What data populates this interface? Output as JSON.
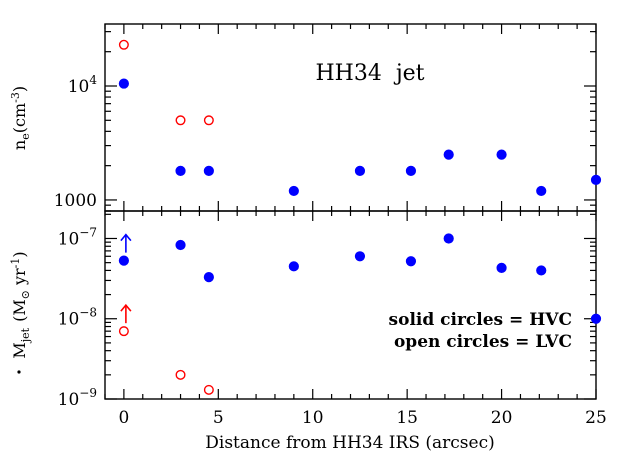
{
  "chart_data": [
    {
      "type": "scatter",
      "panel": "top",
      "title": "HH34  jet",
      "ylabel": "n_e(cm^-3)",
      "ylabel_base": "n",
      "ylabel_sub": "e",
      "ylabel_unit": "(cm",
      "ylabel_exp": "-3",
      "ylabel_close": ")",
      "yscale": "log",
      "ylim": [
        800,
        35000
      ],
      "xlim": [
        -1,
        25
      ],
      "ytick_labels": [
        {
          "value": 1000,
          "base": "1000",
          "exp": ""
        },
        {
          "value": 10000,
          "base": "10",
          "exp": "4"
        }
      ],
      "series": [
        {
          "name": "HVC",
          "style": "solid",
          "color": "#0000ff",
          "x": [
            0,
            3,
            4.5,
            9,
            12.5,
            15.2,
            17.2,
            20,
            22.1,
            25
          ],
          "y": [
            10500,
            1800,
            1800,
            1200,
            1800,
            1800,
            2500,
            2500,
            1200,
            1500
          ]
        },
        {
          "name": "LVC",
          "style": "open",
          "color": "#ff0000",
          "x": [
            0,
            3,
            4.5
          ],
          "y": [
            23000,
            5000,
            5000
          ]
        }
      ]
    },
    {
      "type": "scatter",
      "panel": "bottom",
      "ylabel": "Mdot_jet (M_sun yr^-1)",
      "ylabel_base": "M",
      "ylabel_sub": "jet",
      "ylabel_unit": "(M",
      "ylabel_sun": "⊙",
      "ylabel_yr": " yr",
      "ylabel_exp": "-1",
      "ylabel_close": ")",
      "xlabel": "Distance from HH34 IRS (arcsec)",
      "yscale": "log",
      "ylim": [
        1e-09,
        2.2e-07
      ],
      "xlim": [
        -1,
        25
      ],
      "xticks": [
        0,
        5,
        10,
        15,
        20,
        25
      ],
      "xtick_labels": [
        "0",
        "5",
        "10",
        "15",
        "20",
        "25"
      ],
      "ytick_labels": [
        {
          "value": 1e-07,
          "base": "10",
          "exp": "−7"
        },
        {
          "value": 1e-08,
          "base": "10",
          "exp": "−8"
        },
        {
          "value": 1e-09,
          "base": "10",
          "exp": "−9"
        }
      ],
      "series": [
        {
          "name": "HVC",
          "style": "solid",
          "color": "#0000ff",
          "x": [
            0,
            3,
            4.5,
            9,
            12.5,
            15.2,
            17.2,
            20,
            22.1,
            25
          ],
          "y": [
            5.3e-08,
            8.3e-08,
            3.3e-08,
            4.5e-08,
            6e-08,
            5.2e-08,
            1e-07,
            4.3e-08,
            4e-08,
            1e-08
          ]
        },
        {
          "name": "LVC",
          "style": "open",
          "color": "#ff0000",
          "x": [
            0,
            3,
            4.5
          ],
          "y": [
            7e-09,
            2e-09,
            1.3e-09
          ]
        }
      ],
      "lower_limits": [
        {
          "x": 0,
          "y": 5.3e-08,
          "color": "#0000ff"
        },
        {
          "x": 0,
          "y": 7e-09,
          "color": "#ff0000"
        }
      ],
      "annotations": [
        {
          "text": "solid circles = HVC",
          "color": "#0000ff"
        },
        {
          "text": "open circles = LVC",
          "color": "#ff0000"
        }
      ]
    }
  ]
}
